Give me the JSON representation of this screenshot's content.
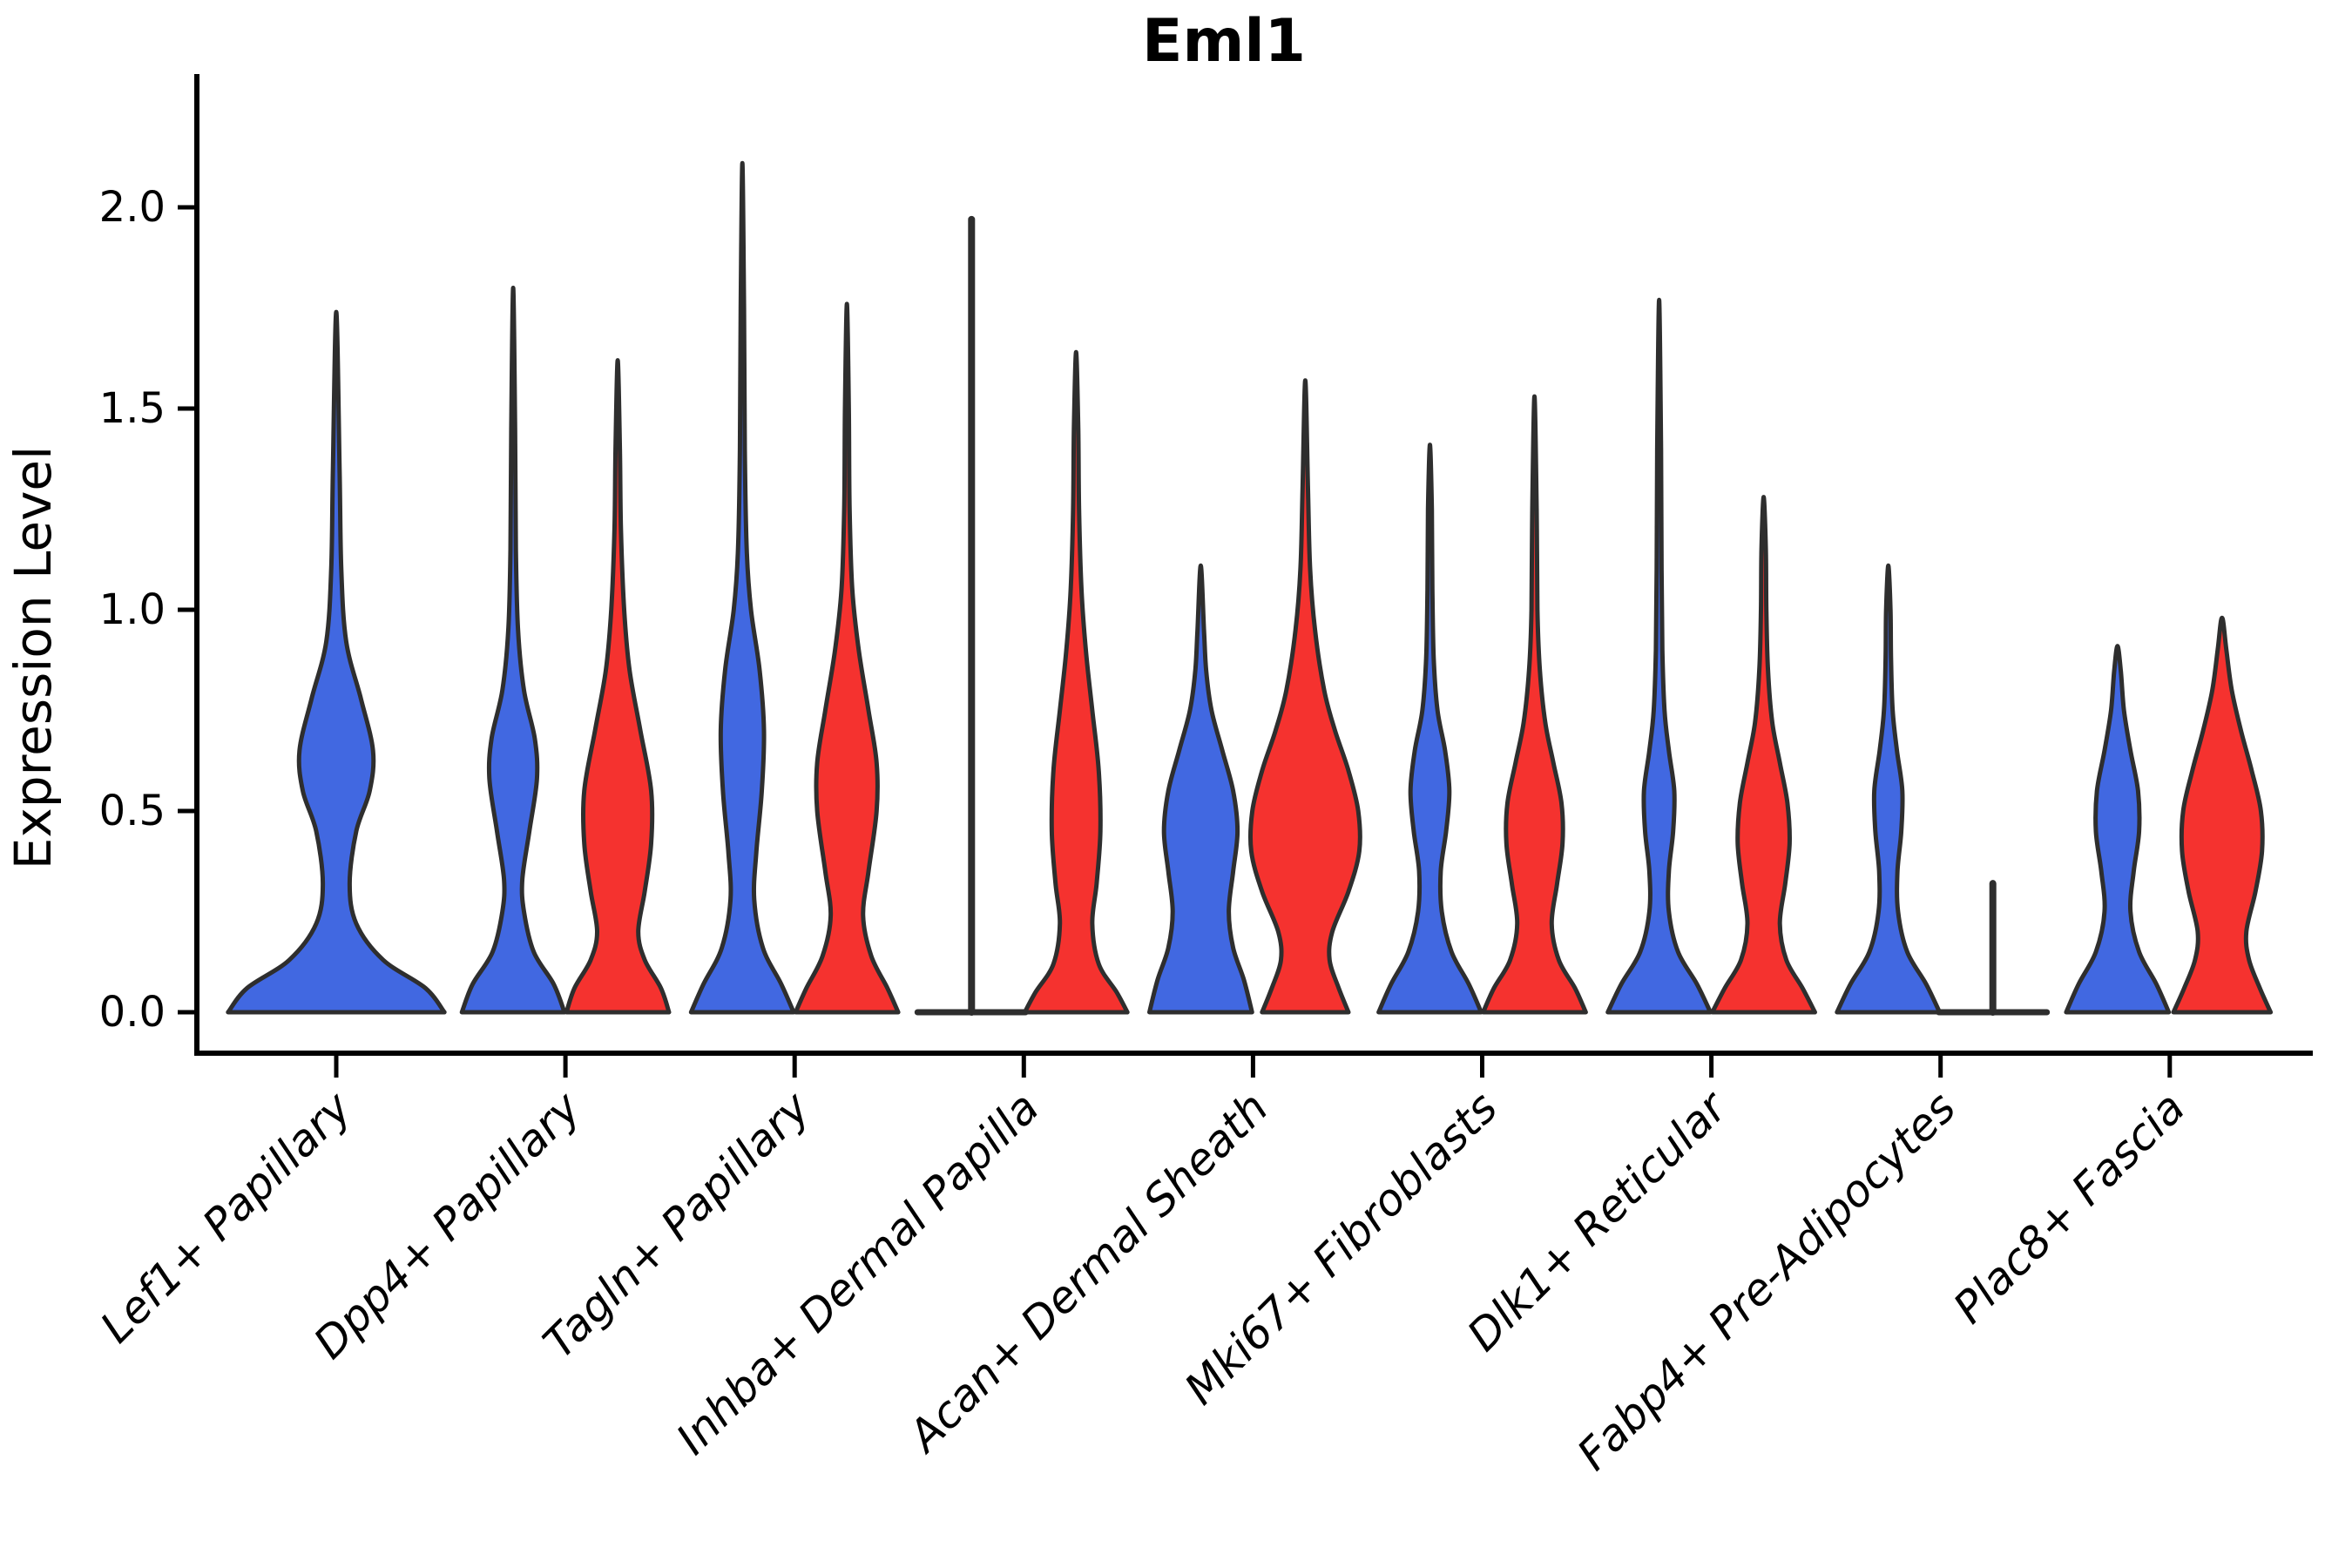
{
  "chart_data": {
    "type": "violin",
    "title": "Eml1",
    "ylabel": "Expression Level",
    "xlabel": "",
    "grid": false,
    "legend": "none",
    "ylim": [
      -0.1,
      2.3
    ],
    "yticks": [
      0.0,
      0.5,
      1.0,
      1.5,
      2.0
    ],
    "ytick_labels": [
      "0.0",
      "0.5",
      "1.0",
      "1.5",
      "2.0"
    ],
    "categories": [
      "Lef1+ Papillary",
      "Dpp4+ Papillary",
      "Tagln+ Papillary",
      "Inhba+ Dermal Papilla",
      "Acan+ Dermal Sheath",
      "Mki67+ Fibroblasts",
      "Dlk1+ Reticular",
      "Fabp4+ Pre-Adipocytes",
      "Plac8+ Fascia"
    ],
    "series": [
      {
        "name": "blue",
        "color": "#4168E1"
      },
      {
        "name": "red",
        "color": "#F5322F"
      }
    ],
    "outline_color": "#2e2e2e",
    "violins": [
      {
        "category": "Lef1+ Papillary",
        "blue": {
          "max": 1.74,
          "single": true,
          "profile": [
            [
              0,
              0.97
            ],
            [
              0.06,
              0.8
            ],
            [
              0.13,
              0.42
            ],
            [
              0.22,
              0.18
            ],
            [
              0.32,
              0.12
            ],
            [
              0.45,
              0.18
            ],
            [
              0.55,
              0.3
            ],
            [
              0.65,
              0.33
            ],
            [
              0.78,
              0.22
            ],
            [
              0.92,
              0.09
            ],
            [
              1.1,
              0.045
            ],
            [
              1.35,
              0.03
            ],
            [
              1.74,
              0
            ]
          ]
        },
        "red": null
      },
      {
        "category": "Dpp4+ Papillary",
        "blue": {
          "max": 1.8,
          "profile": [
            [
              0,
              0.95
            ],
            [
              0.07,
              0.75
            ],
            [
              0.15,
              0.38
            ],
            [
              0.25,
              0.2
            ],
            [
              0.33,
              0.17
            ],
            [
              0.45,
              0.3
            ],
            [
              0.58,
              0.44
            ],
            [
              0.68,
              0.4
            ],
            [
              0.8,
              0.2
            ],
            [
              0.95,
              0.09
            ],
            [
              1.15,
              0.05
            ],
            [
              1.45,
              0.035
            ],
            [
              1.8,
              0
            ]
          ]
        },
        "red": {
          "max": 1.62,
          "profile": [
            [
              0,
              0.95
            ],
            [
              0.06,
              0.8
            ],
            [
              0.13,
              0.5
            ],
            [
              0.2,
              0.38
            ],
            [
              0.3,
              0.5
            ],
            [
              0.42,
              0.62
            ],
            [
              0.55,
              0.62
            ],
            [
              0.7,
              0.42
            ],
            [
              0.85,
              0.22
            ],
            [
              1.0,
              0.12
            ],
            [
              1.2,
              0.06
            ],
            [
              1.4,
              0.04
            ],
            [
              1.62,
              0
            ]
          ]
        }
      },
      {
        "category": "Tagln+ Papillary",
        "blue": {
          "max": 2.11,
          "profile": [
            [
              0,
              0.95
            ],
            [
              0.07,
              0.72
            ],
            [
              0.16,
              0.38
            ],
            [
              0.28,
              0.22
            ],
            [
              0.4,
              0.26
            ],
            [
              0.55,
              0.36
            ],
            [
              0.7,
              0.4
            ],
            [
              0.85,
              0.32
            ],
            [
              1.0,
              0.16
            ],
            [
              1.15,
              0.08
            ],
            [
              1.4,
              0.045
            ],
            [
              1.75,
              0.03
            ],
            [
              2.11,
              0
            ]
          ]
        },
        "red": {
          "max": 1.76,
          "profile": [
            [
              0,
              0.95
            ],
            [
              0.06,
              0.75
            ],
            [
              0.14,
              0.45
            ],
            [
              0.24,
              0.3
            ],
            [
              0.35,
              0.4
            ],
            [
              0.5,
              0.55
            ],
            [
              0.62,
              0.55
            ],
            [
              0.75,
              0.4
            ],
            [
              0.9,
              0.22
            ],
            [
              1.05,
              0.1
            ],
            [
              1.25,
              0.05
            ],
            [
              1.5,
              0.035
            ],
            [
              1.76,
              0
            ]
          ]
        }
      },
      {
        "category": "Inhba+ Dermal Papilla",
        "blue": {
          "max": 1.97,
          "collapsed": true
        },
        "red": {
          "max": 1.64,
          "profile": [
            [
              0,
              0.95
            ],
            [
              0.05,
              0.75
            ],
            [
              0.12,
              0.42
            ],
            [
              0.22,
              0.3
            ],
            [
              0.32,
              0.38
            ],
            [
              0.45,
              0.45
            ],
            [
              0.6,
              0.42
            ],
            [
              0.75,
              0.3
            ],
            [
              0.9,
              0.18
            ],
            [
              1.05,
              0.1
            ],
            [
              1.25,
              0.055
            ],
            [
              1.45,
              0.04
            ],
            [
              1.64,
              0
            ]
          ]
        }
      },
      {
        "category": "Acan+ Dermal Sheath",
        "blue": {
          "max": 1.11,
          "profile": [
            [
              0,
              0.95
            ],
            [
              0.08,
              0.8
            ],
            [
              0.16,
              0.6
            ],
            [
              0.25,
              0.52
            ],
            [
              0.35,
              0.6
            ],
            [
              0.45,
              0.68
            ],
            [
              0.55,
              0.6
            ],
            [
              0.65,
              0.4
            ],
            [
              0.75,
              0.2
            ],
            [
              0.85,
              0.1
            ],
            [
              0.95,
              0.06
            ],
            [
              1.11,
              0
            ]
          ]
        },
        "red": {
          "max": 1.57,
          "profile": [
            [
              0,
              0.8
            ],
            [
              0.06,
              0.62
            ],
            [
              0.13,
              0.45
            ],
            [
              0.2,
              0.5
            ],
            [
              0.3,
              0.8
            ],
            [
              0.4,
              1.0
            ],
            [
              0.5,
              0.98
            ],
            [
              0.6,
              0.8
            ],
            [
              0.7,
              0.55
            ],
            [
              0.8,
              0.35
            ],
            [
              0.95,
              0.18
            ],
            [
              1.1,
              0.09
            ],
            [
              1.3,
              0.05
            ],
            [
              1.57,
              0
            ]
          ]
        }
      },
      {
        "category": "Mki67+ Fibroblasts",
        "blue": {
          "max": 1.41,
          "profile": [
            [
              0,
              0.95
            ],
            [
              0.07,
              0.72
            ],
            [
              0.15,
              0.4
            ],
            [
              0.25,
              0.22
            ],
            [
              0.35,
              0.2
            ],
            [
              0.45,
              0.3
            ],
            [
              0.55,
              0.36
            ],
            [
              0.65,
              0.28
            ],
            [
              0.75,
              0.14
            ],
            [
              0.88,
              0.07
            ],
            [
              1.05,
              0.045
            ],
            [
              1.25,
              0.035
            ],
            [
              1.41,
              0
            ]
          ]
        },
        "red": {
          "max": 1.53,
          "profile": [
            [
              0,
              0.95
            ],
            [
              0.06,
              0.75
            ],
            [
              0.13,
              0.45
            ],
            [
              0.22,
              0.32
            ],
            [
              0.32,
              0.42
            ],
            [
              0.42,
              0.52
            ],
            [
              0.52,
              0.5
            ],
            [
              0.62,
              0.35
            ],
            [
              0.72,
              0.2
            ],
            [
              0.85,
              0.1
            ],
            [
              1.0,
              0.055
            ],
            [
              1.25,
              0.04
            ],
            [
              1.53,
              0
            ]
          ]
        }
      },
      {
        "category": "Dlk1+ Reticular",
        "blue": {
          "max": 1.77,
          "profile": [
            [
              0,
              0.95
            ],
            [
              0.07,
              0.7
            ],
            [
              0.15,
              0.35
            ],
            [
              0.25,
              0.18
            ],
            [
              0.35,
              0.18
            ],
            [
              0.45,
              0.26
            ],
            [
              0.55,
              0.28
            ],
            [
              0.65,
              0.18
            ],
            [
              0.75,
              0.1
            ],
            [
              0.9,
              0.06
            ],
            [
              1.1,
              0.045
            ],
            [
              1.4,
              0.035
            ],
            [
              1.77,
              0
            ]
          ]
        },
        "red": {
          "max": 1.28,
          "profile": [
            [
              0,
              0.95
            ],
            [
              0.06,
              0.72
            ],
            [
              0.13,
              0.42
            ],
            [
              0.22,
              0.3
            ],
            [
              0.32,
              0.4
            ],
            [
              0.42,
              0.48
            ],
            [
              0.52,
              0.44
            ],
            [
              0.62,
              0.3
            ],
            [
              0.72,
              0.16
            ],
            [
              0.85,
              0.08
            ],
            [
              1.0,
              0.05
            ],
            [
              1.15,
              0.04
            ],
            [
              1.28,
              0
            ]
          ]
        }
      },
      {
        "category": "Fabp4+ Pre-Adipocytes",
        "blue": {
          "max": 1.11,
          "profile": [
            [
              0,
              0.95
            ],
            [
              0.07,
              0.7
            ],
            [
              0.15,
              0.35
            ],
            [
              0.25,
              0.18
            ],
            [
              0.35,
              0.17
            ],
            [
              0.45,
              0.24
            ],
            [
              0.55,
              0.26
            ],
            [
              0.65,
              0.16
            ],
            [
              0.75,
              0.08
            ],
            [
              0.88,
              0.05
            ],
            [
              1.0,
              0.04
            ],
            [
              1.11,
              0
            ]
          ]
        },
        "red": {
          "max": 0.32,
          "collapsed": true
        }
      },
      {
        "category": "Plac8+ Fascia",
        "blue": {
          "max": 0.91,
          "profile": [
            [
              0,
              0.95
            ],
            [
              0.07,
              0.72
            ],
            [
              0.15,
              0.4
            ],
            [
              0.25,
              0.24
            ],
            [
              0.35,
              0.3
            ],
            [
              0.45,
              0.4
            ],
            [
              0.55,
              0.38
            ],
            [
              0.65,
              0.24
            ],
            [
              0.75,
              0.12
            ],
            [
              0.85,
              0.06
            ],
            [
              0.91,
              0
            ]
          ]
        },
        "red": {
          "max": 0.98,
          "profile": [
            [
              0,
              0.9
            ],
            [
              0.06,
              0.7
            ],
            [
              0.13,
              0.5
            ],
            [
              0.2,
              0.45
            ],
            [
              0.3,
              0.62
            ],
            [
              0.4,
              0.74
            ],
            [
              0.5,
              0.72
            ],
            [
              0.6,
              0.55
            ],
            [
              0.7,
              0.35
            ],
            [
              0.8,
              0.18
            ],
            [
              0.9,
              0.08
            ],
            [
              0.98,
              0
            ]
          ]
        }
      }
    ]
  }
}
